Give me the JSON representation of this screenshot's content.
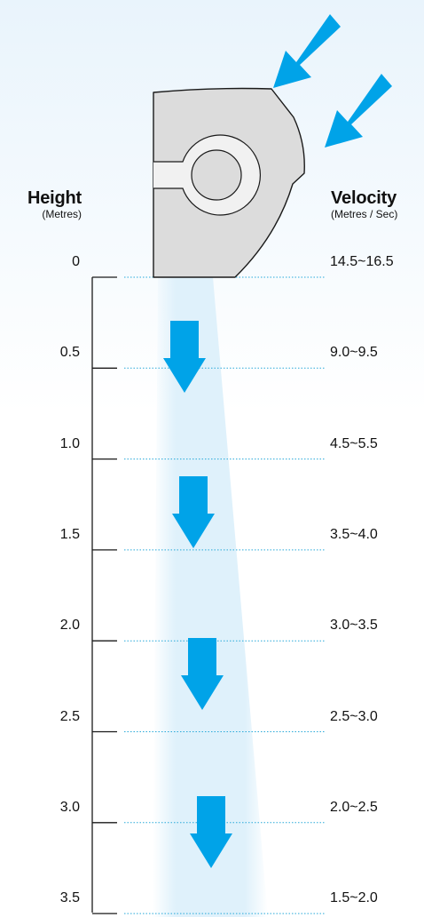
{
  "height_header": {
    "title": "Height",
    "unit": "(Metres)"
  },
  "velocity_header": {
    "title": "Velocity",
    "unit": "(Metres / Sec)"
  },
  "rows": [
    {
      "height": "0",
      "velocity": "14.5~16.5"
    },
    {
      "height": "0.5",
      "velocity": "9.0~9.5"
    },
    {
      "height": "1.0",
      "velocity": "4.5~5.5"
    },
    {
      "height": "1.5",
      "velocity": "3.5~4.0"
    },
    {
      "height": "2.0",
      "velocity": "3.0~3.5"
    },
    {
      "height": "2.5",
      "velocity": "2.5~3.0"
    },
    {
      "height": "3.0",
      "velocity": "2.0~2.5"
    },
    {
      "height": "3.5",
      "velocity": "1.5~2.0"
    }
  ],
  "colors": {
    "arrow": "#00a3e8",
    "airflow": "#dff1fb",
    "background_top": "#ebf5fc",
    "fan_body": "#dcdcdc",
    "outline": "#1a1a1a",
    "dotted_line": "#29a9d9"
  },
  "icons": {
    "intake_arrows": "diagonal-arrow-icon",
    "airflow_arrows": "down-arrow-icon",
    "fan_unit": "fan-unit-icon"
  }
}
